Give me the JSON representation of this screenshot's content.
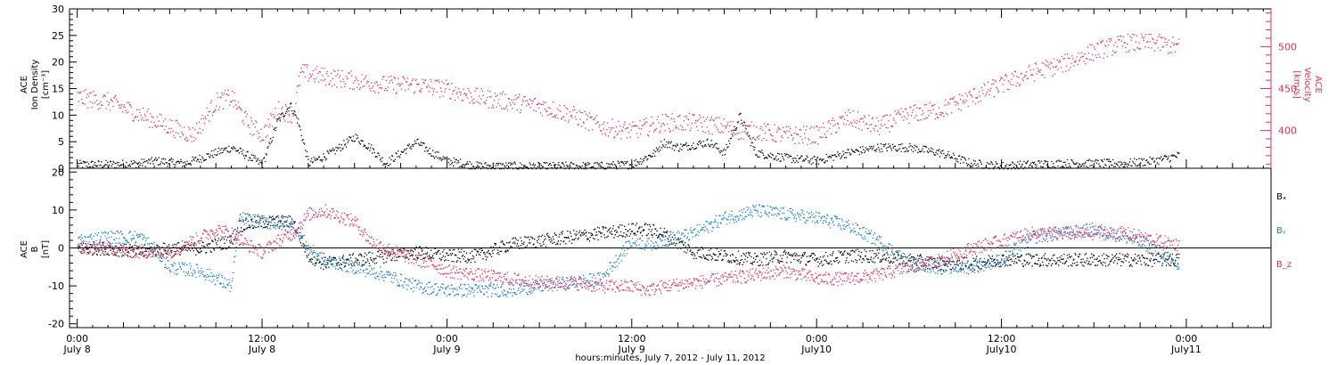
{
  "chart_data": [
    {
      "type": "scatter",
      "panel": "top",
      "left_axis_label": [
        "ACE",
        "Ion Density",
        "[cm⁻³]"
      ],
      "right_axis_label": [
        "ACE",
        "Velocity",
        "[km/s]"
      ],
      "left_ylim": [
        0,
        30
      ],
      "left_yticks": [
        "0",
        "5",
        "10",
        "15",
        "20",
        "25",
        "30"
      ],
      "right_ylim": [
        355,
        545
      ],
      "right_yticks": [
        "400",
        "450",
        "500"
      ],
      "series": [
        {
          "axis": "left",
          "color": "#000000",
          "x": [
            0,
            2,
            4,
            5,
            6,
            7,
            8,
            9,
            10,
            11,
            12,
            13,
            13.8,
            14.3,
            15,
            16.5,
            18,
            19,
            20,
            21,
            22,
            23,
            24,
            26,
            28,
            30,
            32,
            34,
            36,
            37.5,
            38,
            39,
            41,
            42,
            43,
            44,
            46,
            48,
            50,
            52,
            54,
            56,
            58,
            60,
            62,
            64,
            66,
            68,
            70,
            71.5
          ],
          "y": [
            0.8,
            0.8,
            1,
            1.5,
            1.2,
            1,
            2,
            3,
            4,
            2.5,
            0.8,
            9,
            12,
            9,
            1,
            3,
            6,
            4,
            1,
            3,
            5,
            3,
            1.5,
            0.5,
            0.5,
            0.4,
            0.5,
            0.5,
            0.8,
            3,
            5,
            4,
            5,
            3,
            10,
            3,
            2,
            1.5,
            3,
            4,
            4,
            3,
            1,
            0.5,
            0.8,
            1,
            1,
            1,
            1.5,
            2.5
          ]
        },
        {
          "axis": "right",
          "color": "#e0305a",
          "x": [
            0,
            2,
            4,
            6,
            7.5,
            9,
            10,
            11,
            12,
            13,
            14,
            14.5,
            16,
            18,
            20,
            22,
            24,
            26,
            28,
            30,
            32,
            34,
            36,
            38,
            40,
            42,
            43,
            44,
            46,
            48,
            50,
            52,
            54,
            56,
            58,
            60,
            62,
            64,
            66,
            68,
            70,
            71.5
          ],
          "y": [
            440,
            435,
            420,
            405,
            395,
            435,
            440,
            410,
            395,
            425,
            420,
            470,
            465,
            460,
            455,
            455,
            450,
            440,
            435,
            430,
            420,
            405,
            400,
            410,
            410,
            405,
            400,
            400,
            395,
            395,
            415,
            405,
            420,
            425,
            440,
            455,
            470,
            480,
            495,
            505,
            505,
            500
          ]
        }
      ]
    },
    {
      "type": "scatter",
      "panel": "bottom",
      "left_axis_label": [
        "ACE",
        "B",
        "[nT]"
      ],
      "ylim": [
        -21,
        21
      ],
      "yticks": [
        "-20",
        "-10",
        "0",
        "10",
        "20"
      ],
      "legend": [
        {
          "label": "Bₓ",
          "color": "#000000"
        },
        {
          "label": "Bᵧ",
          "color": "#1a7fd4"
        },
        {
          "label": "B_z",
          "color": "#e0305a"
        }
      ],
      "series": [
        {
          "name": "Bₓ",
          "color": "#000000",
          "x": [
            0,
            2,
            4,
            6,
            8,
            10,
            10.5,
            12,
            14,
            15,
            16,
            18,
            20,
            22,
            24,
            26,
            28,
            30,
            32,
            34,
            36,
            37,
            38,
            40,
            42,
            44,
            46,
            48,
            50,
            52,
            54,
            56,
            58,
            60,
            62,
            64,
            66,
            68,
            70,
            71.5
          ],
          "y": [
            0,
            0,
            -1,
            0,
            0,
            2,
            6,
            7,
            7,
            -2,
            -4,
            -3,
            -2,
            -1,
            -2,
            -2,
            1,
            2,
            3,
            4,
            5,
            5,
            4,
            -1,
            -2,
            -3,
            -2,
            -3,
            -2,
            -2,
            -3,
            -4,
            -4,
            -3,
            -3,
            -3,
            -3,
            -3,
            -3,
            -3
          ]
        },
        {
          "name": "Bᵧ",
          "color": "#1a7fd4",
          "x": [
            0,
            2,
            4,
            5,
            6,
            8,
            9,
            10,
            10.5,
            12,
            14,
            15,
            16,
            18,
            20,
            22,
            24,
            26,
            28,
            30,
            32,
            34,
            36,
            37,
            38,
            40,
            42,
            44,
            46,
            48,
            50,
            52,
            54,
            56,
            58,
            60,
            62,
            64,
            66,
            68,
            70,
            71.5
          ],
          "y": [
            2,
            3,
            3,
            0,
            -5,
            -6,
            -8,
            -10,
            8,
            7,
            6,
            0,
            -3,
            -5,
            -7,
            -10,
            -11,
            -11,
            -11,
            -10,
            -9,
            -8,
            2,
            1,
            2,
            4,
            8,
            10,
            9,
            8,
            6,
            2,
            -4,
            -5,
            -5,
            -3,
            3,
            4,
            5,
            3,
            0,
            -5
          ]
        },
        {
          "name": "B_z",
          "color": "#e0305a",
          "x": [
            0,
            2,
            4,
            6,
            8,
            9,
            10,
            11,
            12,
            13,
            14,
            15,
            16,
            18,
            19,
            20,
            22,
            23,
            24,
            26,
            28,
            30,
            32,
            34,
            36,
            37,
            38,
            40,
            42,
            44,
            46,
            48,
            50,
            52,
            54,
            56,
            58,
            60,
            62,
            64,
            66,
            68,
            70,
            71.5
          ],
          "y": [
            0,
            0,
            -1,
            -1,
            3,
            5,
            4,
            1,
            -1,
            2,
            4,
            9,
            10,
            7,
            2,
            0,
            -3,
            -4,
            -6,
            -7,
            -8,
            -9,
            -9,
            -10,
            -10,
            -11,
            -10,
            -9,
            -8,
            -7,
            -6,
            -8,
            -8,
            -7,
            -5,
            -3,
            0,
            2,
            4,
            4,
            4,
            4,
            2,
            1
          ]
        }
      ]
    }
  ],
  "xaxis": {
    "xlim": [
      -0.5,
      77.5
    ],
    "ticks": [
      {
        "x": 0,
        "time": "0:00",
        "day": "July 8"
      },
      {
        "x": 12,
        "time": "12:00",
        "day": "July 8"
      },
      {
        "x": 24,
        "time": "0:00",
        "day": "July 9"
      },
      {
        "x": 36,
        "time": "12:00",
        "day": "July 9"
      },
      {
        "x": 48,
        "time": "0:00",
        "day": "July10"
      },
      {
        "x": 60,
        "time": "12:00",
        "day": "July10"
      },
      {
        "x": 72,
        "time": "0:00",
        "day": "July11"
      }
    ],
    "title": "hours:minutes, July  7, 2012 - July 11, 2012"
  },
  "colors": {
    "black": "#000000",
    "pink": "#e0305a",
    "blue": "#1a7fd4"
  }
}
